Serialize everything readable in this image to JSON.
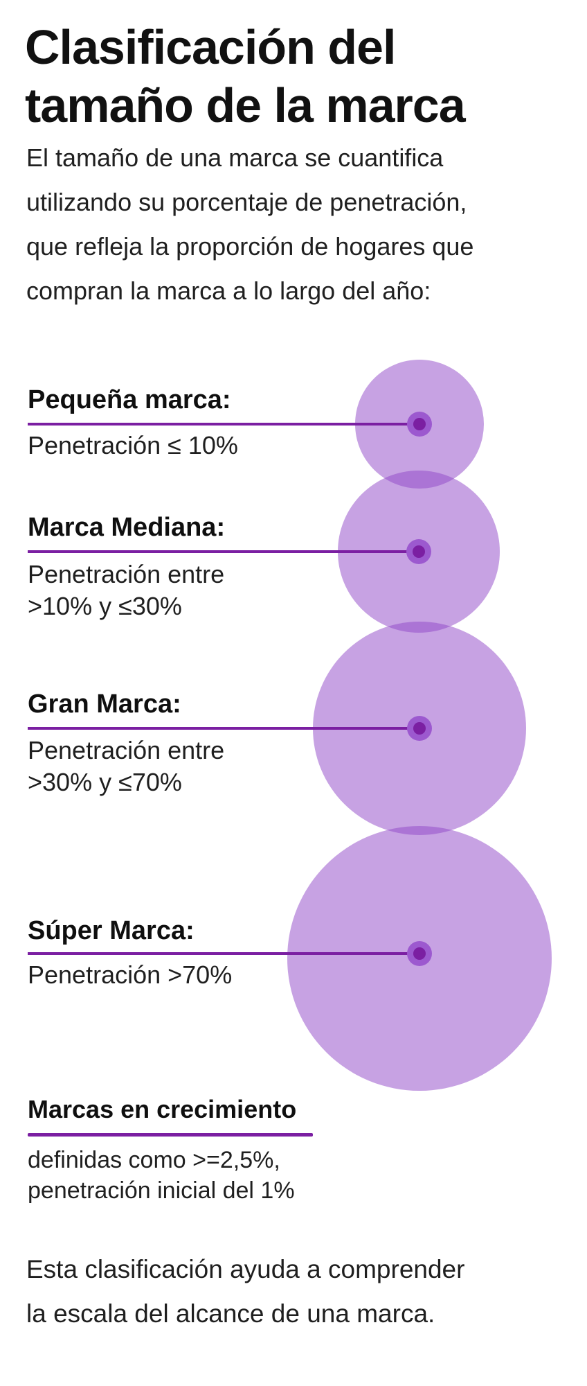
{
  "title": {
    "line1": "Clasificación del",
    "line2": "tamaño de la marca"
  },
  "intro": {
    "lines": [
      "El tamaño de una marca se cuantifica",
      "utilizando su porcentaje de penetración,",
      "que refleja la proporción de hogares que",
      "compran la marca a lo largo del año:"
    ]
  },
  "sections": [
    {
      "label": "Pequeña marca:",
      "desc": [
        "Penetración ≤ 10%"
      ]
    },
    {
      "label": "Marca Mediana:",
      "desc": [
        "Penetración entre",
        ">10% y ≤30%"
      ]
    },
    {
      "label": "Gran Marca:",
      "desc": [
        "Penetración entre",
        ">30% y ≤70%"
      ]
    },
    {
      "label": "Súper Marca:",
      "desc": [
        "Penetración >70%"
      ]
    }
  ],
  "growth": {
    "heading": "Marcas en crecimiento",
    "desc": [
      "definidas como >=2,5%,",
      "penetración inicial del 1%"
    ]
  },
  "closing": {
    "lines": [
      "Esta clasificación ayuda a comprender",
      "la escala del alcance de una marca."
    ]
  },
  "colors": {
    "accent_purple": "#7b1fa2",
    "dot_ring": "#9c59cf",
    "circle_fill": "#9045c7",
    "circle_overlap": "#ab77d6",
    "text_black": "#111111"
  }
}
